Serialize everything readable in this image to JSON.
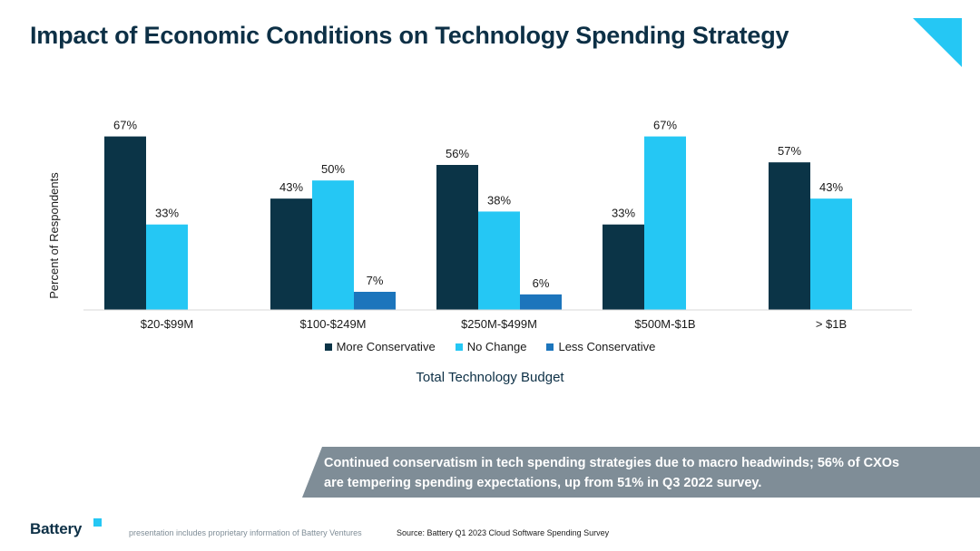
{
  "title": "Impact of Economic Conditions on Technology Spending Strategy",
  "colors": {
    "title": "#0d3046",
    "more_conservative": "#0b3447",
    "no_change": "#25c7f4",
    "less_conservative": "#1c75bc",
    "callout_bg": "#7f8d97",
    "accent_triangle": "#25c7f4"
  },
  "chart_data": {
    "type": "bar",
    "categories": [
      "$20-$99M",
      "$100-$249M",
      "$250M-$499M",
      "$500M-$1B",
      "> $1B"
    ],
    "series": [
      {
        "name": "More Conservative",
        "values": [
          67,
          43,
          56,
          33,
          57
        ]
      },
      {
        "name": "No Change",
        "values": [
          33,
          50,
          38,
          67,
          43
        ]
      },
      {
        "name": "Less Conservative",
        "values": [
          null,
          7,
          6,
          null,
          null
        ]
      }
    ],
    "data_labels": [
      [
        "67%",
        "43%",
        "56%",
        "33%",
        "57%"
      ],
      [
        "33%",
        "50%",
        "38%",
        "67%",
        "43%"
      ],
      [
        "",
        "7%",
        "6%",
        "",
        ""
      ]
    ],
    "xlabel": "Total Technology Budget",
    "ylabel": "Percent of Respondents",
    "ylim": [
      0,
      70
    ],
    "grid": false,
    "legend_position": "bottom"
  },
  "callout": {
    "line1": "Continued conservatism in tech spending strategies due to macro headwinds; 56% of CXOs",
    "line2": "are tempering spending expectations, up from 51% in Q3 2022 survey."
  },
  "footer": {
    "logo": "Battery",
    "disclaimer": "presentation includes proprietary information of Battery Ventures",
    "source": "Source: Battery Q1 2023 Cloud Software Spending Survey"
  }
}
